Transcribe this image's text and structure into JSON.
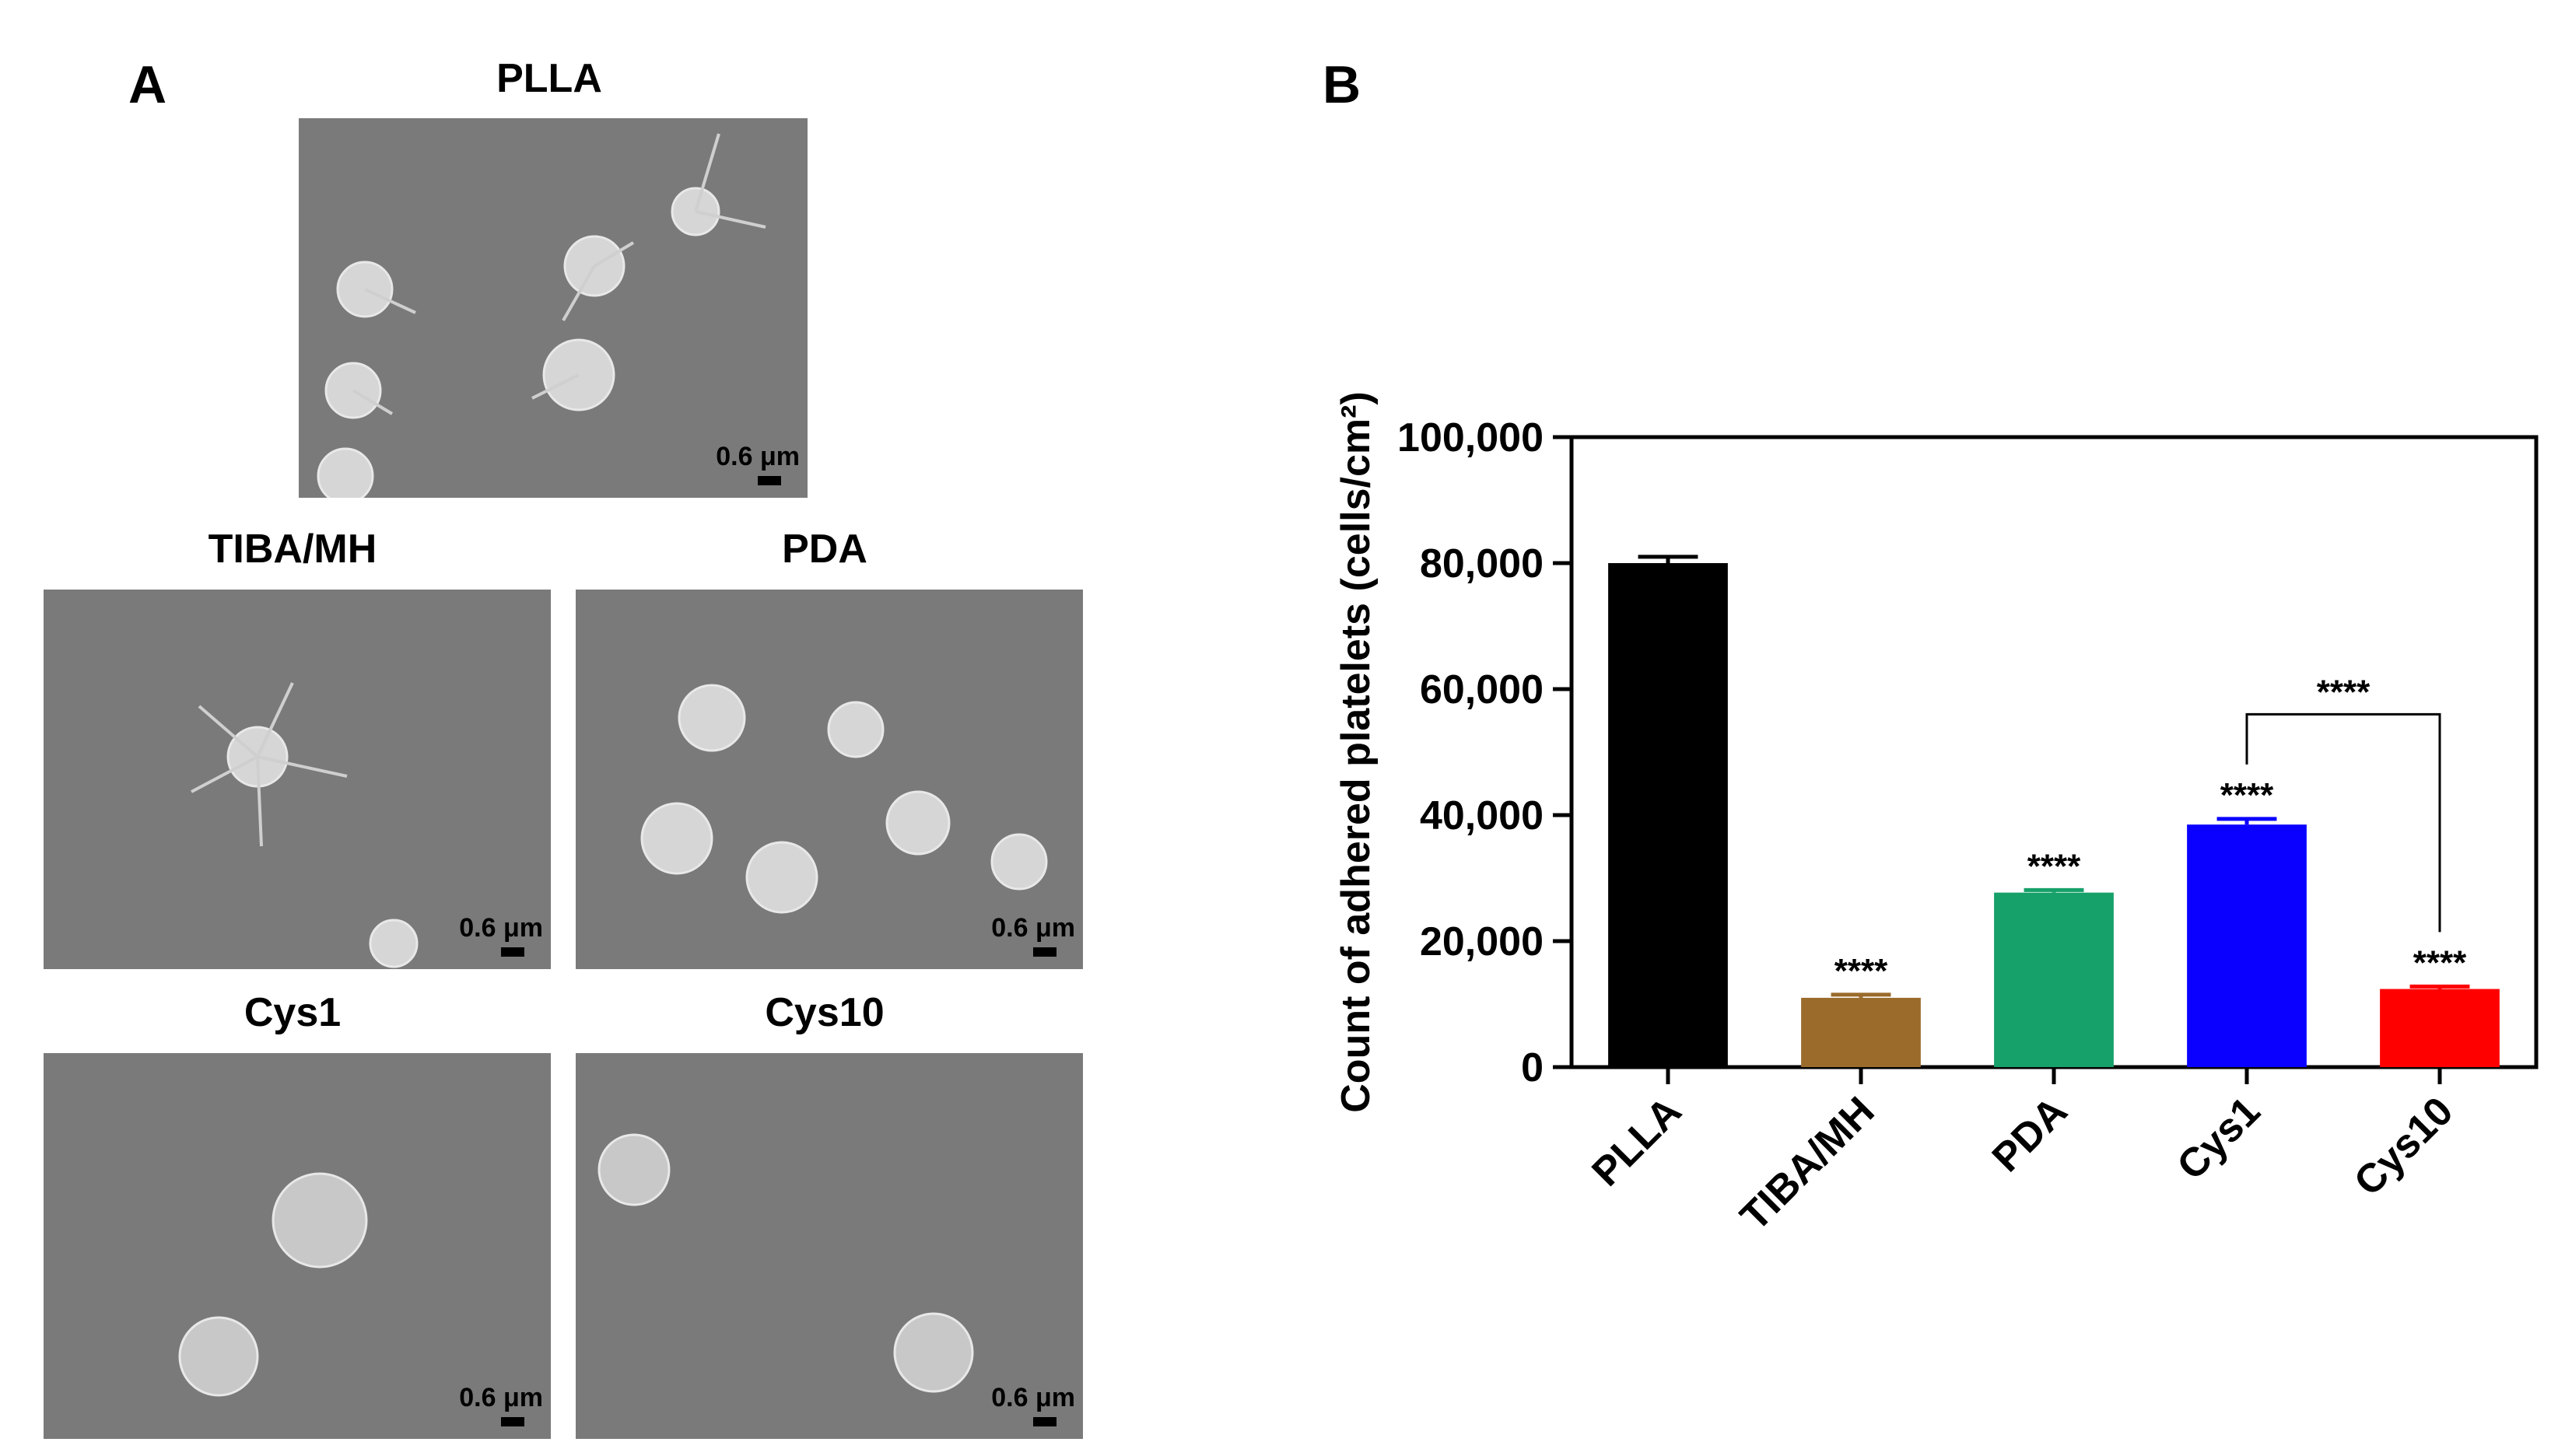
{
  "panel_a": {
    "letter": "A",
    "scale_label": "0.6 μm",
    "images": [
      {
        "title": "PLLA",
        "description": "SEM micrograph of platelets on PLLA"
      },
      {
        "title": "TIBA/MH",
        "description": "SEM micrograph of platelets on TIBA/MH"
      },
      {
        "title": "PDA",
        "description": "SEM micrograph of platelets on PDA"
      },
      {
        "title": "Cys1",
        "description": "SEM micrograph of platelets on Cys1"
      },
      {
        "title": "Cys10",
        "description": "SEM micrograph of platelets on Cys10"
      }
    ]
  },
  "panel_b": {
    "letter": "B"
  },
  "chart_data": {
    "type": "bar",
    "title": "",
    "xlabel": "",
    "ylabel": "Count of adhered platelets (cells/cm²)",
    "ylim": [
      0,
      100000
    ],
    "yticks": [
      0,
      20000,
      40000,
      60000,
      80000,
      100000
    ],
    "ytick_labels": [
      "0",
      "20,000",
      "40,000",
      "60,000",
      "80,000",
      "100,000"
    ],
    "categories": [
      "PLLA",
      "TIBA/MH",
      "PDA",
      "Cys1",
      "Cys10"
    ],
    "values": [
      80000,
      11000,
      27700,
      38500,
      12400
    ],
    "errors": [
      1000,
      500,
      400,
      900,
      400
    ],
    "colors": [
      "#000000",
      "#9a6b2b",
      "#16a06a",
      "#0a00ff",
      "#ff0000"
    ],
    "significance": [
      "",
      "****",
      "****",
      "****",
      "****"
    ],
    "comparisons": [
      {
        "from": "Cys1",
        "to": "Cys10",
        "label": "****",
        "y": 56000
      }
    ],
    "grid": false,
    "legend": "none"
  }
}
